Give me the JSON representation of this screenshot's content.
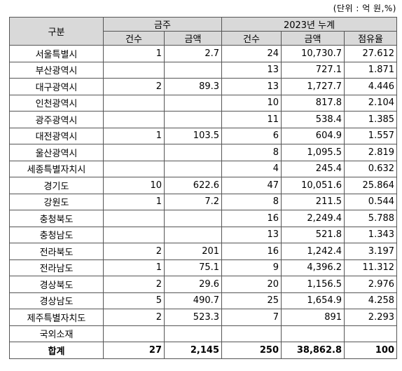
{
  "unit_note": "(단위 : 억 원,%)",
  "header": {
    "category": "구분",
    "week": "금주",
    "cumulative": "2023년 누계",
    "count": "건수",
    "amount": "금액",
    "share": "점유율"
  },
  "rows": [
    {
      "name": "서울특별시",
      "week_count": "1",
      "week_amount": "2.7",
      "cum_count": "24",
      "cum_amount": "10,730.7",
      "share": "27.612"
    },
    {
      "name": "부산광역시",
      "week_count": "",
      "week_amount": "",
      "cum_count": "13",
      "cum_amount": "727.1",
      "share": "1.871"
    },
    {
      "name": "대구광역시",
      "week_count": "2",
      "week_amount": "89.3",
      "cum_count": "13",
      "cum_amount": "1,727.7",
      "share": "4.446"
    },
    {
      "name": "인천광역시",
      "week_count": "",
      "week_amount": "",
      "cum_count": "10",
      "cum_amount": "817.8",
      "share": "2.104"
    },
    {
      "name": "광주광역시",
      "week_count": "",
      "week_amount": "",
      "cum_count": "11",
      "cum_amount": "538.4",
      "share": "1.385"
    },
    {
      "name": "대전광역시",
      "week_count": "1",
      "week_amount": "103.5",
      "cum_count": "6",
      "cum_amount": "604.9",
      "share": "1.557"
    },
    {
      "name": "울산광역시",
      "week_count": "",
      "week_amount": "",
      "cum_count": "8",
      "cum_amount": "1,095.5",
      "share": "2.819"
    },
    {
      "name": "세종특별자치시",
      "week_count": "",
      "week_amount": "",
      "cum_count": "4",
      "cum_amount": "245.4",
      "share": "0.632"
    },
    {
      "name": "경기도",
      "week_count": "10",
      "week_amount": "622.6",
      "cum_count": "47",
      "cum_amount": "10,051.6",
      "share": "25.864"
    },
    {
      "name": "강원도",
      "week_count": "1",
      "week_amount": "7.2",
      "cum_count": "8",
      "cum_amount": "211.5",
      "share": "0.544"
    },
    {
      "name": "충청북도",
      "week_count": "",
      "week_amount": "",
      "cum_count": "16",
      "cum_amount": "2,249.4",
      "share": "5.788"
    },
    {
      "name": "충청남도",
      "week_count": "",
      "week_amount": "",
      "cum_count": "13",
      "cum_amount": "521.8",
      "share": "1.343"
    },
    {
      "name": "전라북도",
      "week_count": "2",
      "week_amount": "201",
      "cum_count": "16",
      "cum_amount": "1,242.4",
      "share": "3.197"
    },
    {
      "name": "전라남도",
      "week_count": "1",
      "week_amount": "75.1",
      "cum_count": "9",
      "cum_amount": "4,396.2",
      "share": "11.312"
    },
    {
      "name": "경상북도",
      "week_count": "2",
      "week_amount": "29.6",
      "cum_count": "20",
      "cum_amount": "1,156.5",
      "share": "2.976"
    },
    {
      "name": "경상남도",
      "week_count": "5",
      "week_amount": "490.7",
      "cum_count": "25",
      "cum_amount": "1,654.9",
      "share": "4.258"
    },
    {
      "name": "제주특별자치도",
      "week_count": "2",
      "week_amount": "523.3",
      "cum_count": "7",
      "cum_amount": "891",
      "share": "2.293"
    },
    {
      "name": "국외소재",
      "week_count": "",
      "week_amount": "",
      "cum_count": "",
      "cum_amount": "",
      "share": ""
    }
  ],
  "total": {
    "name": "합계",
    "week_count": "27",
    "week_amount": "2,145",
    "cum_count": "250",
    "cum_amount": "38,862.8",
    "share": "100"
  }
}
